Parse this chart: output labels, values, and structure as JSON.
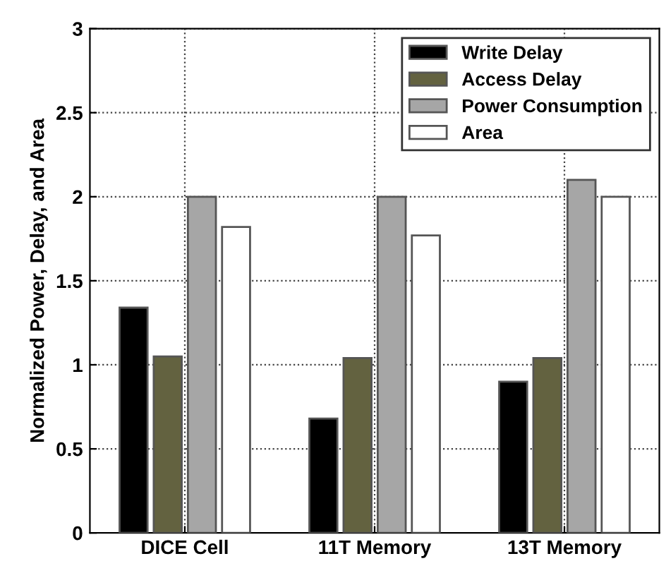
{
  "chart_data": {
    "type": "bar",
    "ylabel": "Normalized Power, Delay, and Area",
    "categories": [
      "DICE Cell",
      "11T Memory",
      "13T Memory"
    ],
    "series": [
      {
        "name": "Write Delay",
        "color": "#000000",
        "values": [
          1.34,
          0.68,
          0.9
        ]
      },
      {
        "name": "Access Delay",
        "color": "#636240",
        "values": [
          1.05,
          1.04,
          1.04
        ]
      },
      {
        "name": "Power Consumption",
        "color": "#a6a6a6",
        "values": [
          2.0,
          2.0,
          2.1
        ]
      },
      {
        "name": "Area",
        "color": "#ffffff",
        "values": [
          1.82,
          1.77,
          2.0
        ]
      }
    ],
    "ylim": [
      0,
      3
    ],
    "yticks": [
      0,
      0.5,
      1,
      1.5,
      2,
      2.5,
      3
    ],
    "grid": true,
    "legend": "top right"
  }
}
